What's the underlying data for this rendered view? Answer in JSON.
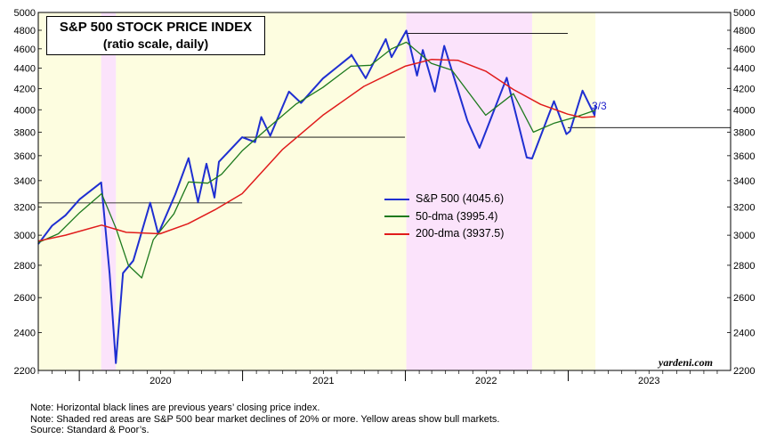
{
  "title": "S&P 500 STOCK PRICE INDEX",
  "subtitle": "(ratio scale, daily)",
  "watermark": "yardeni.com",
  "end_label": "3/3",
  "notes": [
    "Note: Horizontal black lines are previous years’ closing price index.",
    "Note: Shaded red areas are S&P 500 bear market declines of 20% or more. Yellow areas show bull markets.",
    "Source: Standard & Poor’s."
  ],
  "colors": {
    "sp500": "#1f2fd1",
    "dma50": "#1e7a1e",
    "dma200": "#e01b1b",
    "bull": "#fdfde0",
    "bear": "#fbe3fb"
  },
  "chart_data": {
    "type": "line",
    "y_scale": "log",
    "ylim": [
      2200,
      5000
    ],
    "y_ticks": [
      2200,
      2400,
      2600,
      2800,
      3000,
      3200,
      3400,
      3600,
      3800,
      4000,
      4200,
      4400,
      4600,
      4800,
      5000
    ],
    "x_labels": [
      "2020",
      "2021",
      "2022",
      "2023"
    ],
    "xlim": [
      "2019-10-01",
      "2023-12-31"
    ],
    "series": [
      {
        "name": "S&P 500 (4045.6)",
        "color": "#1f2fd1",
        "key": "sp500",
        "points": [
          [
            "2019-10-01",
            2940
          ],
          [
            "2019-11-01",
            3066
          ],
          [
            "2019-12-01",
            3140
          ],
          [
            "2020-01-02",
            3258
          ],
          [
            "2020-02-19",
            3386
          ],
          [
            "2020-03-09",
            2746
          ],
          [
            "2020-03-23",
            2237
          ],
          [
            "2020-04-08",
            2750
          ],
          [
            "2020-05-01",
            2830
          ],
          [
            "2020-06-08",
            3232
          ],
          [
            "2020-06-26",
            3009
          ],
          [
            "2020-08-03",
            3294
          ],
          [
            "2020-09-02",
            3580
          ],
          [
            "2020-09-23",
            3237
          ],
          [
            "2020-10-12",
            3534
          ],
          [
            "2020-10-30",
            3270
          ],
          [
            "2020-11-09",
            3550
          ],
          [
            "2020-12-31",
            3756
          ],
          [
            "2021-01-29",
            3714
          ],
          [
            "2021-02-12",
            3934
          ],
          [
            "2021-03-04",
            3768
          ],
          [
            "2021-04-15",
            4170
          ],
          [
            "2021-05-12",
            4063
          ],
          [
            "2021-06-30",
            4297
          ],
          [
            "2021-08-31",
            4522
          ],
          [
            "2021-09-02",
            4537
          ],
          [
            "2021-10-04",
            4300
          ],
          [
            "2021-11-18",
            4704
          ],
          [
            "2021-12-01",
            4513
          ],
          [
            "2022-01-03",
            4796
          ],
          [
            "2022-01-27",
            4326
          ],
          [
            "2022-02-09",
            4587
          ],
          [
            "2022-03-08",
            4170
          ],
          [
            "2022-03-29",
            4631
          ],
          [
            "2022-05-20",
            3901
          ],
          [
            "2022-06-16",
            3666
          ],
          [
            "2022-08-16",
            4305
          ],
          [
            "2022-09-30",
            3585
          ],
          [
            "2022-10-12",
            3577
          ],
          [
            "2022-11-30",
            4080
          ],
          [
            "2022-12-28",
            3783
          ],
          [
            "2023-01-05",
            3808
          ],
          [
            "2023-02-02",
            4179
          ],
          [
            "2023-03-01",
            3951
          ],
          [
            "2023-03-03",
            4045.6
          ]
        ]
      },
      {
        "name": "50-dma (3995.4)",
        "color": "#1e7a1e",
        "key": "dma50",
        "points": [
          [
            "2019-10-01",
            2950
          ],
          [
            "2019-11-15",
            3010
          ],
          [
            "2020-01-02",
            3160
          ],
          [
            "2020-02-20",
            3300
          ],
          [
            "2020-03-23",
            3050
          ],
          [
            "2020-04-20",
            2800
          ],
          [
            "2020-05-20",
            2720
          ],
          [
            "2020-06-15",
            2970
          ],
          [
            "2020-07-31",
            3150
          ],
          [
            "2020-09-02",
            3390
          ],
          [
            "2020-10-15",
            3380
          ],
          [
            "2020-11-15",
            3450
          ],
          [
            "2020-12-31",
            3640
          ],
          [
            "2021-02-28",
            3840
          ],
          [
            "2021-04-30",
            4050
          ],
          [
            "2021-06-30",
            4210
          ],
          [
            "2021-09-01",
            4420
          ],
          [
            "2021-10-15",
            4430
          ],
          [
            "2021-12-01",
            4600
          ],
          [
            "2022-01-03",
            4670
          ],
          [
            "2022-02-28",
            4450
          ],
          [
            "2022-04-15",
            4380
          ],
          [
            "2022-06-30",
            3950
          ],
          [
            "2022-08-31",
            4150
          ],
          [
            "2022-10-15",
            3800
          ],
          [
            "2022-12-01",
            3880
          ],
          [
            "2023-01-15",
            3930
          ],
          [
            "2023-03-03",
            3995.4
          ]
        ]
      },
      {
        "name": "200-dma (3937.5)",
        "color": "#e01b1b",
        "key": "dma200",
        "points": [
          [
            "2019-10-01",
            2960
          ],
          [
            "2019-12-01",
            3000
          ],
          [
            "2020-02-20",
            3070
          ],
          [
            "2020-04-15",
            3020
          ],
          [
            "2020-06-30",
            3010
          ],
          [
            "2020-09-01",
            3080
          ],
          [
            "2020-10-31",
            3180
          ],
          [
            "2020-12-31",
            3300
          ],
          [
            "2021-03-31",
            3650
          ],
          [
            "2021-06-30",
            3950
          ],
          [
            "2021-09-30",
            4220
          ],
          [
            "2021-12-31",
            4420
          ],
          [
            "2022-03-01",
            4490
          ],
          [
            "2022-04-29",
            4480
          ],
          [
            "2022-06-30",
            4370
          ],
          [
            "2022-08-31",
            4190
          ],
          [
            "2022-10-31",
            4050
          ],
          [
            "2022-12-31",
            3960
          ],
          [
            "2023-02-01",
            3930
          ],
          [
            "2023-03-03",
            3937.5
          ]
        ]
      }
    ],
    "bear_periods": [
      [
        "2020-02-19",
        "2020-03-23"
      ],
      [
        "2022-01-03",
        "2022-10-12"
      ]
    ],
    "bull_periods": [
      [
        "2019-10-01",
        "2020-02-19"
      ],
      [
        "2020-03-23",
        "2022-01-03"
      ],
      [
        "2022-10-12",
        "2023-03-03"
      ]
    ],
    "year_end_closes": [
      {
        "year": "2019",
        "value": 3230.78,
        "from": "2019-10-01",
        "to": "2020-12-31"
      },
      {
        "year": "2020",
        "value": 3756.07,
        "from": "2020-12-31",
        "to": "2021-12-31"
      },
      {
        "year": "2021",
        "value": 4766.18,
        "from": "2022-01-01",
        "to": "2022-12-31"
      },
      {
        "year": "2022",
        "value": 3839.5,
        "from": "2022-12-31",
        "to": "2023-12-31"
      }
    ]
  }
}
